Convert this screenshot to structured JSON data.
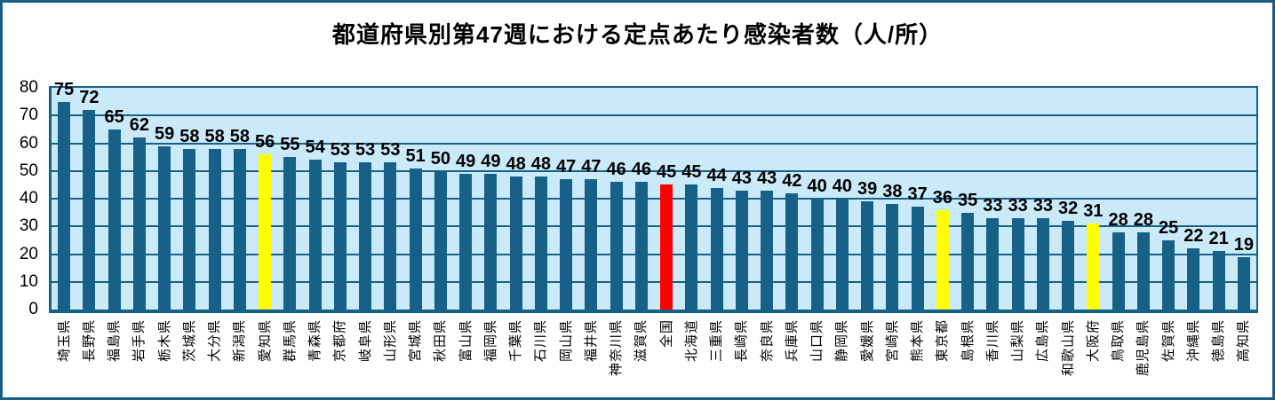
{
  "chart_data": {
    "type": "bar",
    "title": "都道府県別第47週における定点あたり感染者数（人/所）",
    "xlabel": "",
    "ylabel": "",
    "ylim": [
      0,
      80
    ],
    "yticks": [
      0,
      10,
      20,
      30,
      40,
      50,
      60,
      70,
      80
    ],
    "grid": true,
    "legend": "none",
    "plot_bg": "#CAEAFA",
    "bar_color_default": "#176087",
    "grid_color": "#176087",
    "categories": [
      "埼玉県",
      "長野県",
      "福島県",
      "岩手県",
      "栃木県",
      "茨城県",
      "大分県",
      "新潟県",
      "愛知県",
      "群馬県",
      "青森県",
      "京都府",
      "岐阜県",
      "山形県",
      "宮城県",
      "秋田県",
      "富山県",
      "福岡県",
      "千葉県",
      "石川県",
      "岡山県",
      "福井県",
      "神奈川県",
      "滋賀県",
      "全国",
      "北海道",
      "三重県",
      "長崎県",
      "奈良県",
      "兵庫県",
      "山口県",
      "静岡県",
      "愛媛県",
      "宮崎県",
      "熊本県",
      "東京都",
      "島根県",
      "香川県",
      "山梨県",
      "広島県",
      "和歌山県",
      "大阪府",
      "鳥取県",
      "鹿児島県",
      "佐賀県",
      "沖縄県",
      "徳島県",
      "高知県"
    ],
    "values": [
      75,
      72,
      65,
      62,
      59,
      58,
      58,
      58,
      56,
      55,
      54,
      53,
      53,
      53,
      51,
      50,
      49,
      49,
      48,
      48,
      47,
      47,
      46,
      46,
      45,
      45,
      44,
      43,
      43,
      42,
      40,
      40,
      39,
      38,
      37,
      36,
      35,
      33,
      33,
      33,
      32,
      31,
      28,
      28,
      25,
      22,
      21,
      19
    ],
    "highlights": [
      {
        "category": "愛知県",
        "color": "#FFFF00"
      },
      {
        "category": "全国",
        "color": "#FF0000"
      },
      {
        "category": "東京都",
        "color": "#FFFF00"
      },
      {
        "category": "大阪府",
        "color": "#FFFF00"
      }
    ]
  },
  "colors": {
    "frame_border": "#175E82",
    "text": "#000000"
  }
}
